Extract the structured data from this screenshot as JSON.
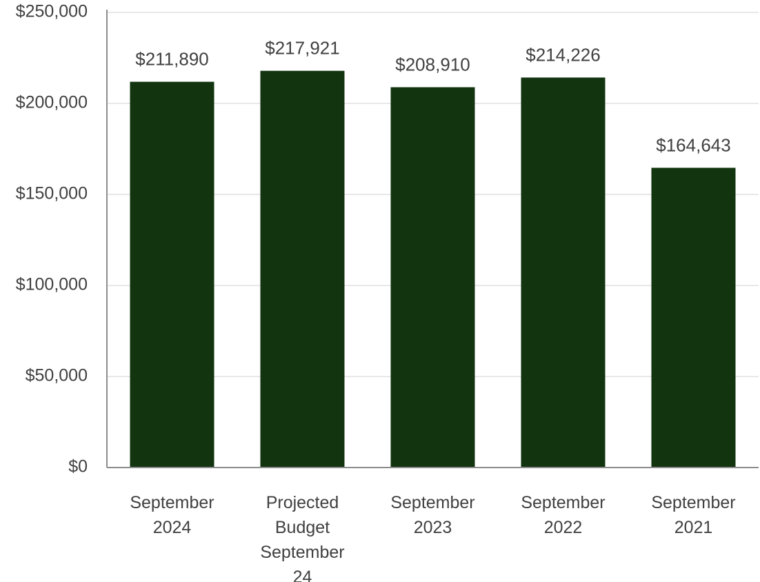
{
  "chart_data": {
    "type": "bar",
    "title": "",
    "xlabel": "",
    "ylabel": "",
    "categories": [
      [
        "September",
        "2024"
      ],
      [
        "Projected",
        "Budget",
        "September",
        "24"
      ],
      [
        "September",
        "2023"
      ],
      [
        "September",
        "2022"
      ],
      [
        "September",
        "2021"
      ]
    ],
    "values": [
      211890,
      217921,
      208910,
      214226,
      164643
    ],
    "data_labels": [
      "$211,890",
      "$217,921",
      "$208,910",
      "$214,226",
      "$164,643"
    ],
    "ylim": [
      0,
      250000
    ],
    "yticks": [
      0,
      50000,
      100000,
      150000,
      200000,
      250000
    ],
    "ytick_labels": [
      "$0",
      "$50,000",
      "$100,000",
      "$150,000",
      "$200,000",
      "$250,000"
    ],
    "grid": true,
    "legend": "none",
    "colors": {
      "bar": "#12340f",
      "grid": "#d9d9d9",
      "axis": "#8c8c8c",
      "text": "#404040"
    }
  }
}
